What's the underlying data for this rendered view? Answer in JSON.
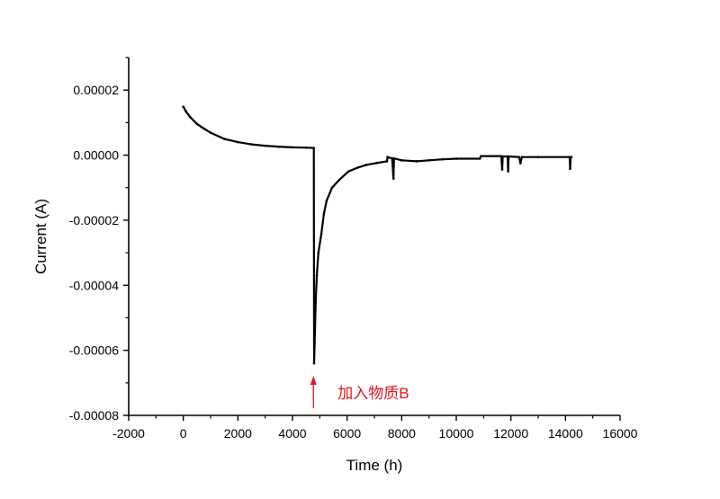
{
  "chart_data": {
    "type": "line",
    "title": "",
    "xlabel": "Time (h)",
    "ylabel": "Current (A)",
    "xlim": [
      -2000,
      16000
    ],
    "ylim": [
      -8e-05,
      3e-05
    ],
    "xticks": [
      -2000,
      0,
      2000,
      4000,
      6000,
      8000,
      10000,
      12000,
      14000,
      16000
    ],
    "xtick_labels": [
      "-2000",
      "0",
      "2000",
      "4000",
      "6000",
      "8000",
      "10000",
      "12000",
      "14000",
      "16000"
    ],
    "yticks": [
      2e-05,
      0,
      -2e-05,
      -4e-05,
      -6e-05,
      -8e-05
    ],
    "ytick_labels": [
      "0.00002",
      "0.00000",
      "-0.00002",
      "-0.00004",
      "-0.00006",
      "-0.00008"
    ],
    "grid": false,
    "line_color": "#000000",
    "series": [
      {
        "x": [
          0,
          100,
          250,
          500,
          750,
          1000,
          1500,
          2000,
          2500,
          3000,
          3500,
          4000,
          4500,
          4780,
          4790,
          4810,
          4850,
          4890,
          4950,
          5055,
          5150,
          5250,
          5450,
          5700,
          6050,
          6400,
          6700,
          7100,
          7460,
          7480,
          7650,
          7700,
          7720,
          8000,
          8550,
          9000,
          9500,
          10000,
          10860,
          10900,
          11650,
          11680,
          11700,
          11880,
          11900,
          11920,
          12300,
          12350,
          12400,
          13000,
          14150,
          14170,
          14190,
          14220
        ],
        "y": [
          1.49e-05,
          1.34e-05,
          1.17e-05,
          9.6e-06,
          8.2e-06,
          6.9e-06,
          5e-06,
          4e-06,
          3.3e-06,
          2.9e-06,
          2.6e-06,
          2.4e-06,
          2.3e-06,
          2.2e-06,
          -6.4e-05,
          -5.8e-05,
          -4.5e-05,
          -3.7e-05,
          -3e-05,
          -2.43e-05,
          -1.8e-05,
          -1.4e-05,
          -1e-05,
          -7.7e-06,
          -5e-06,
          -3.8e-06,
          -3e-06,
          -2.4e-06,
          -1.9e-06,
          -6e-07,
          -1e-06,
          -7.2e-06,
          -1e-06,
          -1.6e-06,
          -1.9e-06,
          -1.6e-06,
          -1.3e-06,
          -1.1e-06,
          -1.1e-06,
          -3e-07,
          -3e-07,
          -4.4e-06,
          -4e-07,
          -4e-07,
          -5e-06,
          -4e-07,
          -6e-07,
          -2.5e-06,
          -6e-07,
          -6e-07,
          -6e-07,
          -4.2e-06,
          -6e-07,
          -6e-07
        ]
      }
    ],
    "annotations": [
      {
        "text": "加入物质B",
        "x": 4800,
        "color": "#e0141e",
        "arrow": "up"
      }
    ]
  }
}
